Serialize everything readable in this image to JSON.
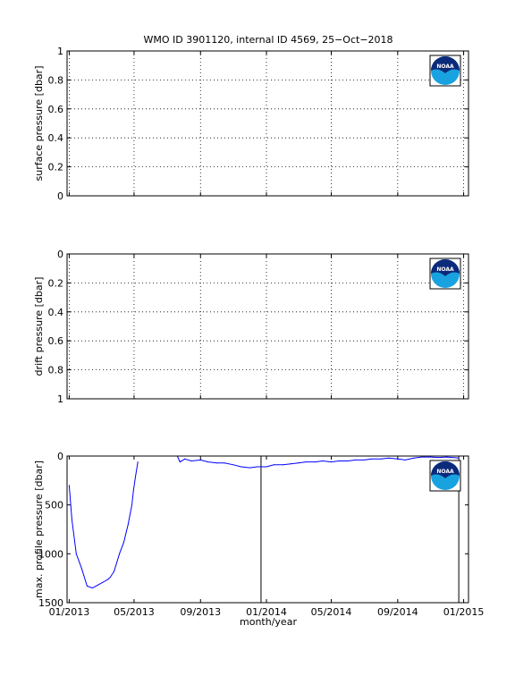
{
  "title": "WMO ID 3901120, internal ID 4569, 25−Oct−2018",
  "xlabel": "month/year",
  "x_tick_labels": [
    "01/2013",
    "05/2013",
    "09/2013",
    "01/2014",
    "05/2014",
    "09/2014",
    "01/2015"
  ],
  "logo_text": "NOAA",
  "colors": {
    "series": "#0000ff",
    "axes": "#000000",
    "logo_dark": "#0b2a7a",
    "logo_light": "#19a2e0"
  },
  "chart_data": [
    {
      "type": "line",
      "ylabel": "surface pressure [dbar]",
      "ylim": [
        0,
        1
      ],
      "y_reversed": false,
      "y_tick_labels": [
        "0",
        "0.2",
        "0.4",
        "0.6",
        "0.8",
        "1"
      ],
      "grid": true,
      "series": []
    },
    {
      "type": "line",
      "ylabel": "drift pressure [dbar]",
      "ylim": [
        0,
        1
      ],
      "y_reversed": true,
      "y_tick_labels": [
        "0",
        "0.2",
        "0.4",
        "0.6",
        "0.8",
        "1"
      ],
      "grid": true,
      "series": []
    },
    {
      "type": "line",
      "ylabel": "max. profile pressure [dbar]",
      "ylim": [
        0,
        1500
      ],
      "y_reversed": true,
      "y_tick_labels": [
        "0",
        "500",
        "1000",
        "1500"
      ],
      "grid": false,
      "vertical_lines": [
        "2013-12-22",
        "2014-12-23"
      ],
      "series": [
        {
          "x": [
            "2013-01-01",
            "2013-01-06",
            "2013-01-14",
            "2013-01-24",
            "2013-02-03",
            "2013-02-13",
            "2013-02-23",
            "2013-03-05",
            "2013-03-14",
            "2013-03-18",
            "2013-03-25",
            "2013-04-04",
            "2013-04-12",
            "2013-04-20",
            "2013-04-27",
            "2013-04-30",
            "2013-05-04",
            "2013-05-08",
            "2013-07-20",
            "2013-07-25",
            "2013-08-03",
            "2013-08-15",
            "2013-09-01",
            "2013-09-15",
            "2013-10-01",
            "2013-10-15",
            "2013-11-01",
            "2013-11-15",
            "2013-12-01",
            "2013-12-15",
            "2014-01-01",
            "2014-01-15",
            "2014-02-01",
            "2014-02-15",
            "2014-03-01",
            "2014-03-15",
            "2014-04-01",
            "2014-04-15",
            "2014-05-01",
            "2014-05-15",
            "2014-06-01",
            "2014-06-15",
            "2014-07-01",
            "2014-07-15",
            "2014-08-01",
            "2014-08-15",
            "2014-09-01",
            "2014-09-15",
            "2014-10-01",
            "2014-10-15",
            "2014-11-01",
            "2014-11-15",
            "2014-12-01",
            "2014-12-23"
          ],
          "y": [
            300,
            650,
            1000,
            1150,
            1330,
            1350,
            1320,
            1290,
            1260,
            1240,
            1180,
            1000,
            880,
            700,
            500,
            350,
            200,
            60,
            0,
            60,
            30,
            50,
            40,
            60,
            70,
            70,
            90,
            110,
            120,
            110,
            110,
            90,
            90,
            80,
            70,
            60,
            60,
            50,
            60,
            50,
            50,
            40,
            40,
            30,
            30,
            20,
            30,
            40,
            20,
            10,
            10,
            15,
            10,
            20
          ]
        }
      ]
    }
  ]
}
